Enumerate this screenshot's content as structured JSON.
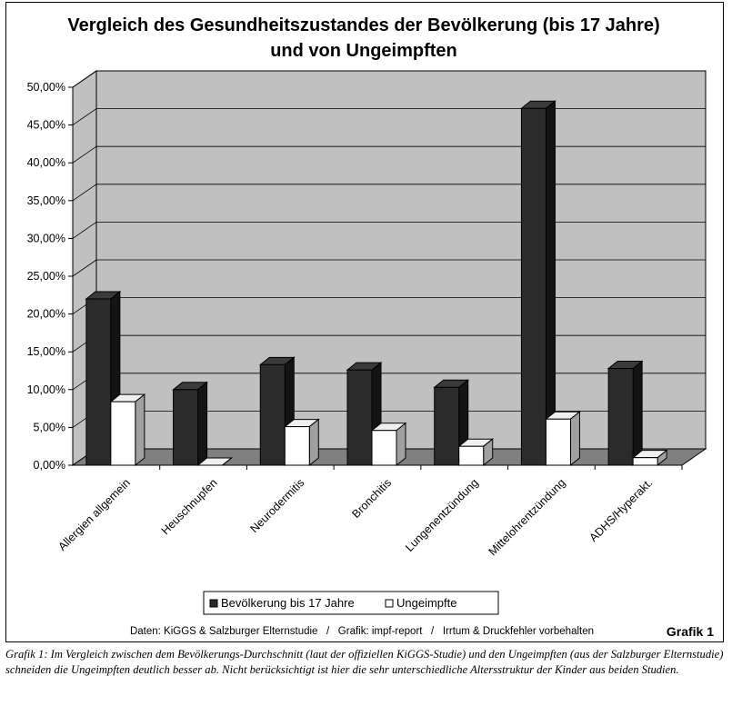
{
  "chart_data": {
    "type": "bar",
    "title_line1": "Vergleich des Gesundheitszustandes der Bevölkerung (bis 17 Jahre)",
    "title_line2": "und von Ungeimpften",
    "categories": [
      "Allergien allgemein",
      "Heuschnupfen",
      "Neurodermitis",
      "Bronchitis",
      "Lungenentzündung",
      "Mittelohrentzündung",
      "ADHS/Hyperakt."
    ],
    "series": [
      {
        "name": "Bevölkerung bis 17 Jahre",
        "values": [
          22.0,
          10.0,
          13.3,
          12.6,
          10.3,
          47.2,
          12.8
        ],
        "color": "#2b2b2b"
      },
      {
        "name": "Ungeimpfte",
        "values": [
          8.4,
          0.0,
          5.1,
          4.6,
          2.5,
          6.1,
          1.0
        ],
        "color": "#ffffff"
      }
    ],
    "yticks": [
      "0,00%",
      "5,00%",
      "10,00%",
      "15,00%",
      "20,00%",
      "25,00%",
      "30,00%",
      "35,00%",
      "40,00%",
      "45,00%",
      "50,00%"
    ],
    "ylim": [
      0,
      50
    ],
    "grid": true,
    "legend_position": "bottom",
    "wall_color": "#c0c0c0",
    "floor_color": "#808080"
  },
  "footer": {
    "source": "Daten: KiGGS & Salzburger Elternstudie   /   Grafik: impf-report   /   Irrtum & Druckfehler vorbehalten",
    "tag": "Grafik 1"
  },
  "caption": "Grafik 1: Im Vergleich zwischen dem Bevölkerungs-Durchschnitt (laut der offiziellen KiGGS-Studie) und den Ungeimpften (aus der Salzburger Elternstudie) schneiden die Ungeimpften deutlich besser ab. Nicht berücksichtigt ist hier die sehr unterschiedliche Altersstruktur der Kinder aus beiden Studien."
}
